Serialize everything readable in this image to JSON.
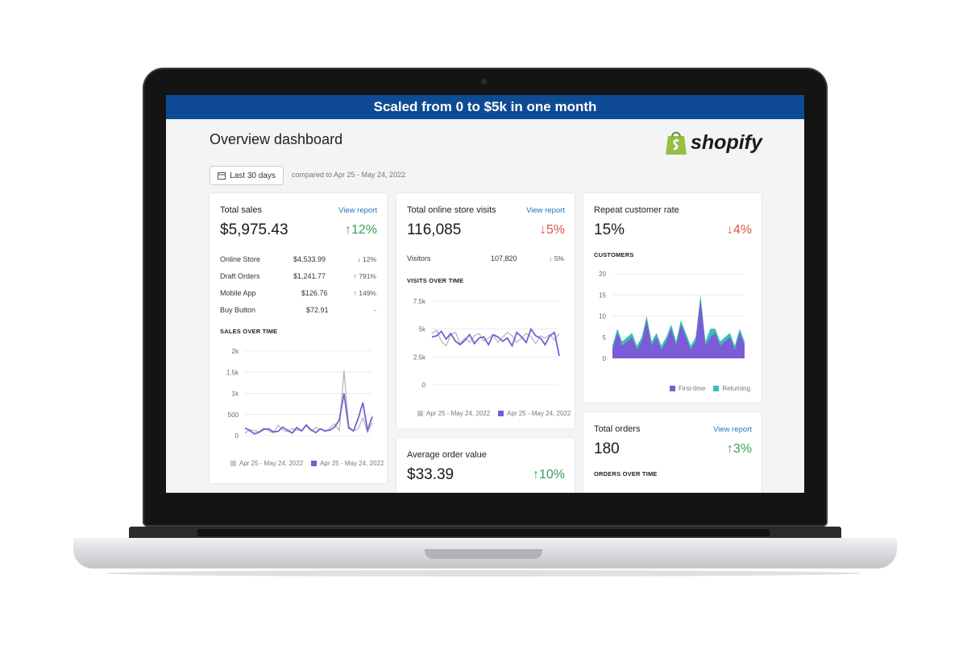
{
  "banner": "Scaled from 0 to $5k in one month",
  "dashboard": {
    "title": "Overview dashboard",
    "logo_text": "shopify",
    "date_button": "Last 30 days",
    "compare_text": "compared to Apr 25 - May 24, 2022"
  },
  "colors": {
    "primary": "#7b5cd6",
    "comparison": "#b8b8b8",
    "returning": "#3bbfb4",
    "up": "#36a05a",
    "down": "#e0533f",
    "banner": "#0f4b94"
  },
  "total_sales": {
    "title": "Total sales",
    "link": "View report",
    "value": "$5,975.43",
    "change": "↑12%",
    "rows": [
      {
        "label": "Online Store",
        "value": "$4,533.99",
        "change": "↓ 12%"
      },
      {
        "label": "Draft Orders",
        "value": "$1,241.77",
        "change": "↑ 791%"
      },
      {
        "label": "Mobile App",
        "value": "$126.76",
        "change": "↑ 149%"
      },
      {
        "label": "Buy Button",
        "value": "$72.91",
        "change": "-"
      }
    ],
    "chart_title": "SALES OVER TIME",
    "legend_prev": "Apr 25 - May 24, 2022",
    "legend_cur": "Apr 25 - May 24, 2022",
    "chart_data": {
      "type": "line",
      "ylim": [
        0,
        2000
      ],
      "y_ticks": [
        "0",
        "500",
        "1k",
        "1.5k",
        "2k"
      ],
      "series": [
        {
          "values": [
            60,
            140,
            120,
            90,
            180,
            110,
            60,
            250,
            140,
            90,
            170,
            130,
            120,
            230,
            110,
            190,
            150,
            100,
            180,
            280,
            120,
            1550,
            220,
            110,
            170,
            420,
            80,
            300
          ]
        },
        {
          "values": [
            180,
            120,
            40,
            80,
            150,
            160,
            90,
            100,
            200,
            130,
            60,
            190,
            110,
            250,
            140,
            70,
            160,
            110,
            130,
            200,
            370,
            1000,
            180,
            110,
            400,
            780,
            130,
            450
          ]
        }
      ]
    }
  },
  "visits": {
    "title": "Total online store visits",
    "link": "View report",
    "value": "116,085",
    "change": "↓5%",
    "row": {
      "label": "Visitors",
      "value": "107,820",
      "change": "↓ 5%"
    },
    "chart_title": "VISITS OVER TIME",
    "legend_prev": "Apr 25 - May 24, 2022",
    "legend_cur": "Apr 25 - May 24, 2022",
    "chart_data": {
      "type": "line",
      "ylim": [
        0,
        7500
      ],
      "y_ticks": [
        "0",
        "2.5k",
        "5k",
        "7.5k"
      ],
      "series": [
        {
          "values": [
            4600,
            4900,
            3900,
            3500,
            4500,
            4700,
            3700,
            4200,
            3800,
            4400,
            4600,
            3900,
            4200,
            4500,
            3800,
            4300,
            4700,
            4400,
            3800,
            4200,
            4600,
            4300,
            3700,
            4400,
            4200,
            4500,
            4000,
            4600
          ]
        },
        {
          "values": [
            4300,
            4400,
            4800,
            4100,
            4600,
            3900,
            3600,
            4000,
            4500,
            3700,
            4200,
            4300,
            3600,
            4500,
            4300,
            3900,
            4200,
            3500,
            4700,
            4300,
            3800,
            5000,
            4400,
            4200,
            3600,
            4400,
            4700,
            2600
          ]
        }
      ]
    }
  },
  "repeat": {
    "title": "Repeat customer rate",
    "value": "15%",
    "change": "↓4%",
    "chart_title": "CUSTOMERS",
    "legend_first": "First-time",
    "legend_returning": "Returning",
    "chart_data": {
      "type": "area",
      "ylim": [
        0,
        20
      ],
      "y_ticks": [
        "0",
        "5",
        "10",
        "15",
        "20"
      ],
      "series": [
        {
          "name": "First-time",
          "values": [
            2,
            6,
            3,
            4,
            5,
            2,
            4,
            9,
            3,
            5,
            2,
            4,
            7,
            3,
            8,
            5,
            2,
            4,
            14,
            3,
            5,
            6,
            3,
            4,
            5,
            2,
            6,
            3
          ]
        },
        {
          "name": "Returning",
          "values": [
            3,
            7,
            4,
            5,
            6,
            3,
            5,
            10,
            4,
            6,
            3,
            5,
            8,
            4,
            9,
            6,
            3,
            5,
            15,
            4,
            7,
            7,
            4,
            5,
            6,
            3,
            7,
            4
          ]
        }
      ]
    }
  },
  "aov": {
    "title": "Average order value",
    "value": "$33.39",
    "change": "↑10%"
  },
  "orders": {
    "title": "Total orders",
    "link": "View report",
    "value": "180",
    "change": "↑3%",
    "chart_title": "ORDERS OVER TIME"
  }
}
